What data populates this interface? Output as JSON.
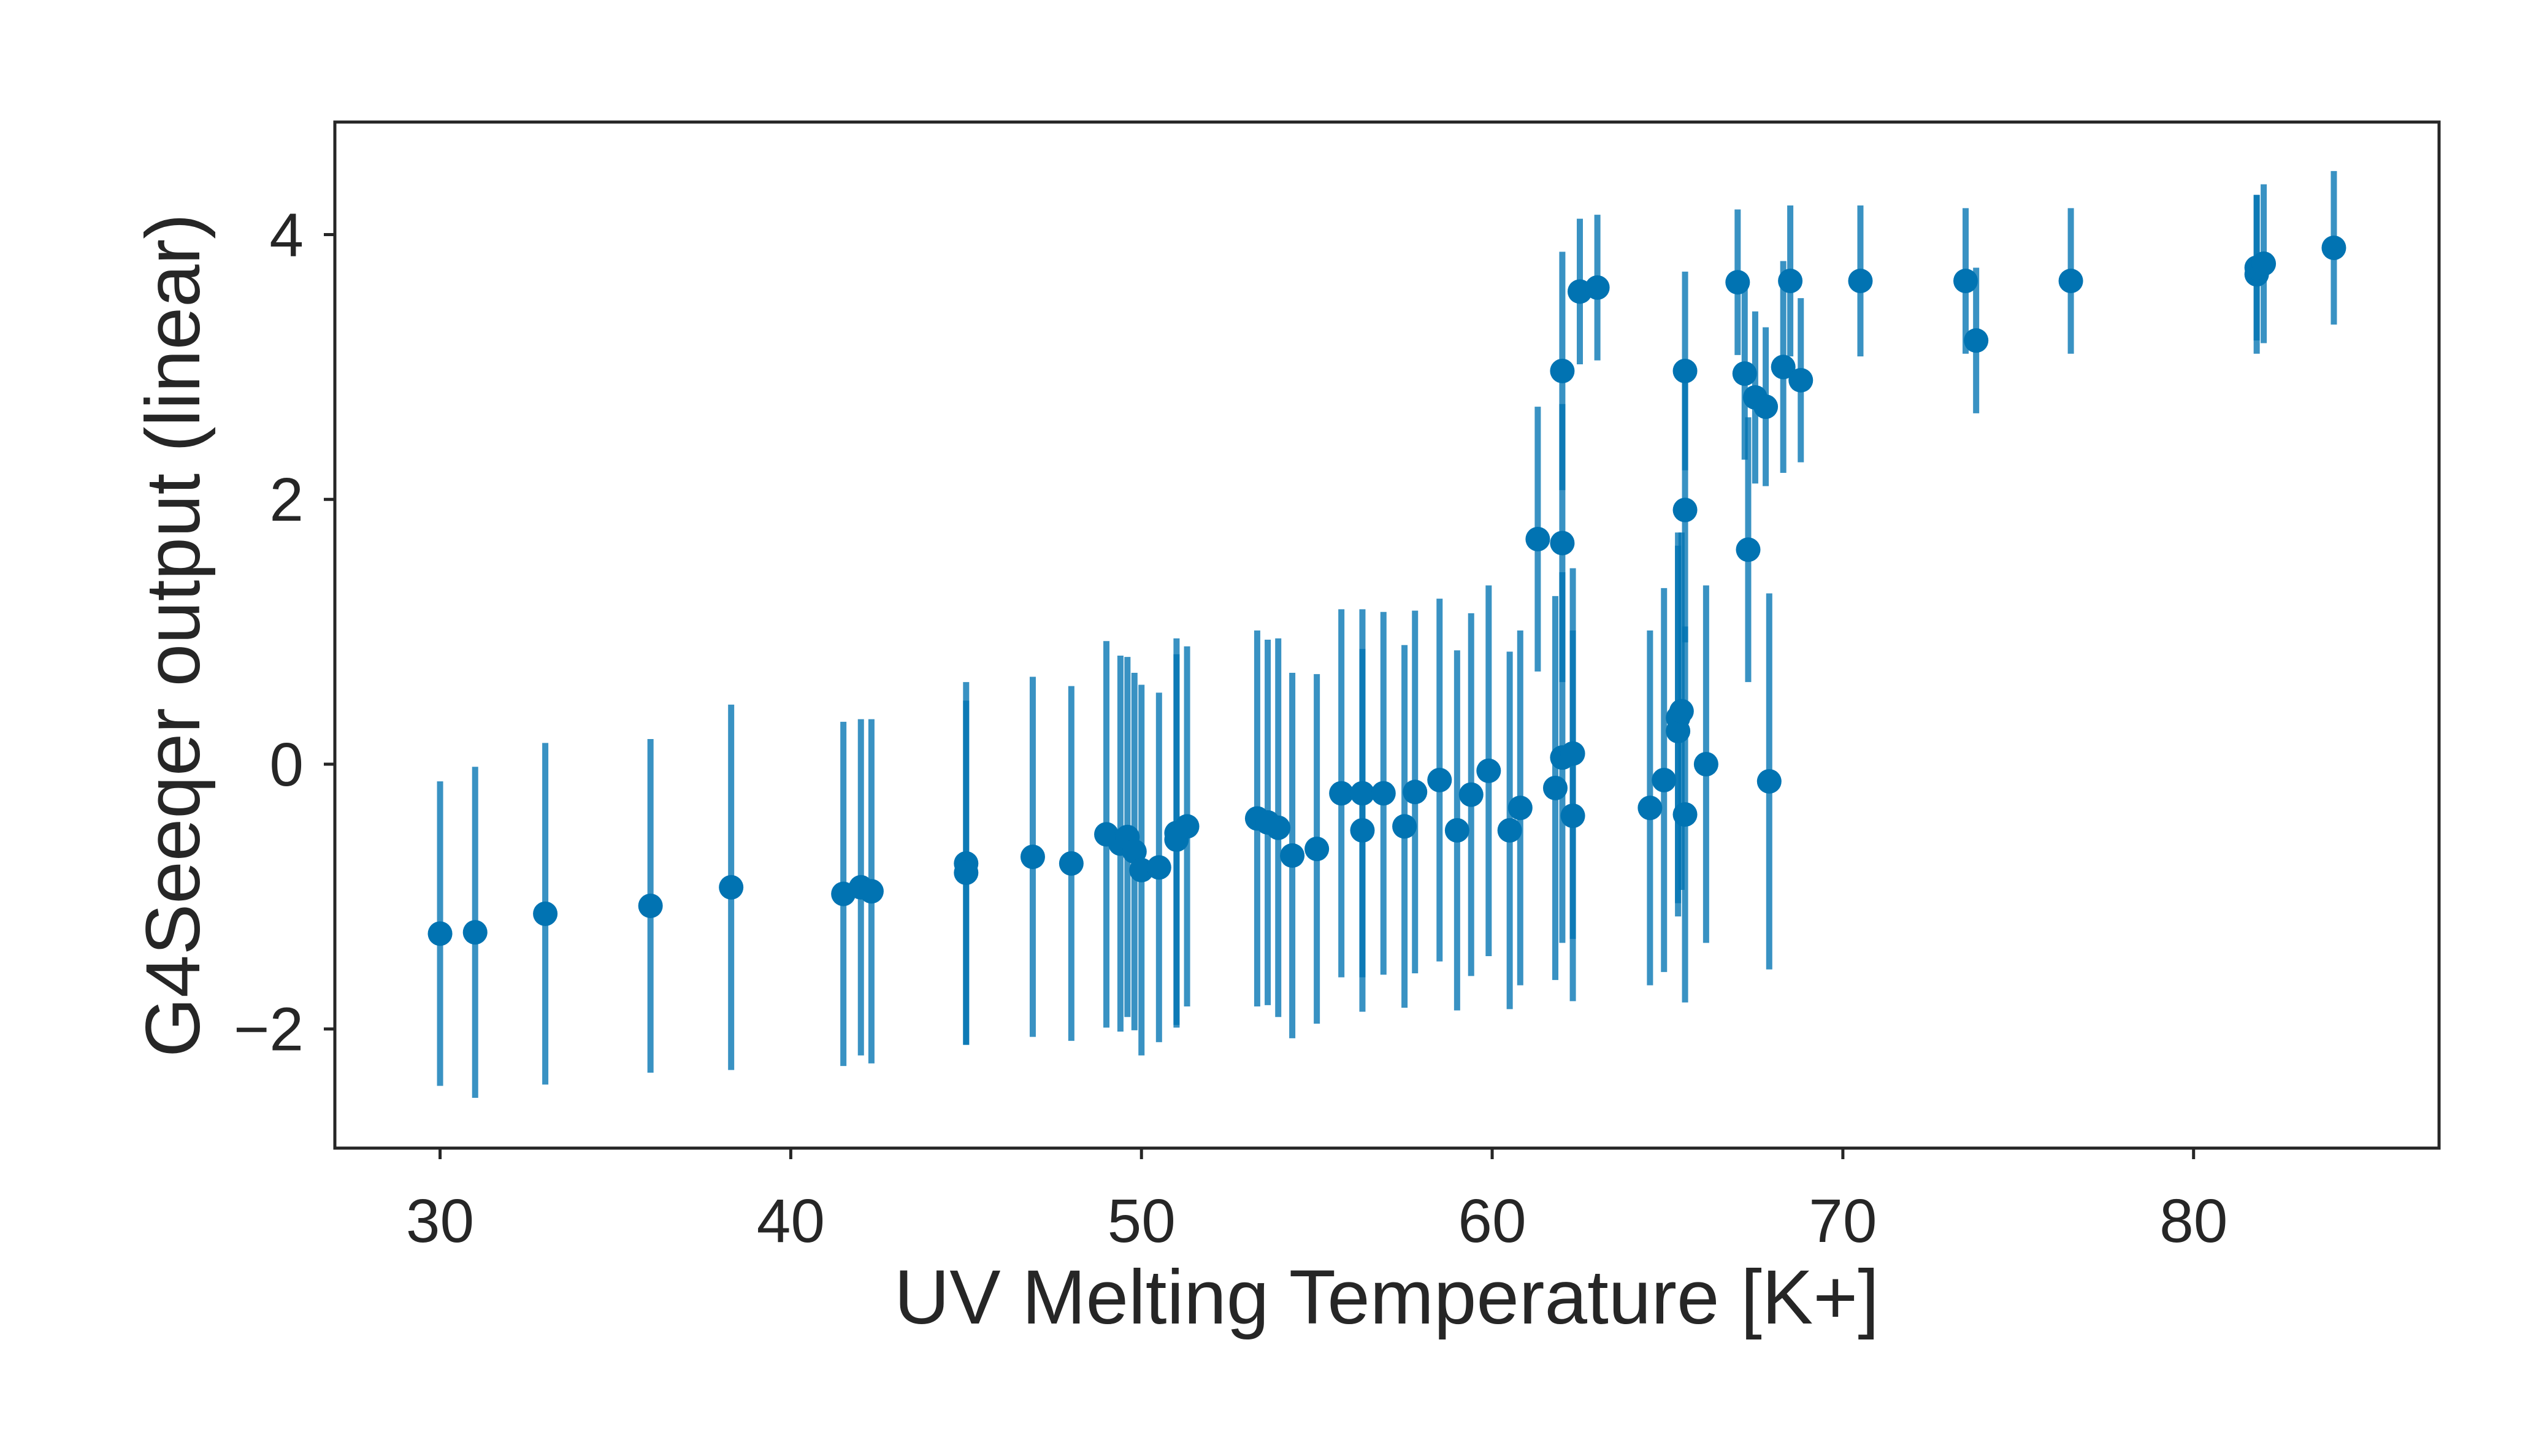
{
  "chart_data": {
    "type": "scatter",
    "title": "",
    "xlabel": "UV Melting Temperature [K+]",
    "ylabel": "G4Seeqer output (linear)",
    "xlim": [
      27,
      87
    ],
    "ylim": [
      -2.9,
      4.85
    ],
    "xticks": [
      30,
      40,
      50,
      60,
      70,
      80
    ],
    "yticks": [
      -2,
      0,
      2,
      4
    ],
    "x_tick_labels": [
      "30",
      "40",
      "50",
      "60",
      "70",
      "80"
    ],
    "y_tick_labels": [
      "−2",
      "0",
      "2",
      "4"
    ],
    "grid": false,
    "legend": "none",
    "marker_color": "#0173b2",
    "errorbar_color": "#0173b2",
    "points": [
      {
        "x": 30.0,
        "y": -1.28,
        "err": 1.15
      },
      {
        "x": 31.0,
        "y": -1.27,
        "err": 1.25
      },
      {
        "x": 33.0,
        "y": -1.13,
        "err": 1.29
      },
      {
        "x": 36.0,
        "y": -1.07,
        "err": 1.26
      },
      {
        "x": 38.3,
        "y": -0.93,
        "err": 1.38
      },
      {
        "x": 41.5,
        "y": -0.98,
        "err": 1.3
      },
      {
        "x": 42.0,
        "y": -0.93,
        "err": 1.27
      },
      {
        "x": 42.3,
        "y": -0.96,
        "err": 1.3
      },
      {
        "x": 45.0,
        "y": -0.75,
        "err": 1.37
      },
      {
        "x": 45.0,
        "y": -0.82,
        "err": 1.3
      },
      {
        "x": 46.9,
        "y": -0.7,
        "err": 1.36
      },
      {
        "x": 48.0,
        "y": -0.75,
        "err": 1.34
      },
      {
        "x": 49.0,
        "y": -0.53,
        "err": 1.46
      },
      {
        "x": 49.4,
        "y": -0.6,
        "err": 1.42
      },
      {
        "x": 49.6,
        "y": -0.55,
        "err": 1.36
      },
      {
        "x": 49.8,
        "y": -0.66,
        "err": 1.35
      },
      {
        "x": 50.0,
        "y": -0.8,
        "err": 1.4
      },
      {
        "x": 50.5,
        "y": -0.78,
        "err": 1.32
      },
      {
        "x": 51.0,
        "y": -0.52,
        "err": 1.47
      },
      {
        "x": 51.0,
        "y": -0.57,
        "err": 1.4
      },
      {
        "x": 51.3,
        "y": -0.47,
        "err": 1.36
      },
      {
        "x": 53.3,
        "y": -0.41,
        "err": 1.42
      },
      {
        "x": 53.6,
        "y": -0.44,
        "err": 1.38
      },
      {
        "x": 53.9,
        "y": -0.48,
        "err": 1.43
      },
      {
        "x": 54.3,
        "y": -0.69,
        "err": 1.38
      },
      {
        "x": 55.0,
        "y": -0.64,
        "err": 1.32
      },
      {
        "x": 55.7,
        "y": -0.22,
        "err": 1.39
      },
      {
        "x": 56.3,
        "y": -0.5,
        "err": 1.37
      },
      {
        "x": 56.3,
        "y": -0.22,
        "err": 1.39
      },
      {
        "x": 56.9,
        "y": -0.22,
        "err": 1.37
      },
      {
        "x": 57.5,
        "y": -0.47,
        "err": 1.37
      },
      {
        "x": 57.8,
        "y": -0.21,
        "err": 1.37
      },
      {
        "x": 58.5,
        "y": -0.12,
        "err": 1.37
      },
      {
        "x": 59.0,
        "y": -0.5,
        "err": 1.36
      },
      {
        "x": 59.4,
        "y": -0.23,
        "err": 1.37
      },
      {
        "x": 59.9,
        "y": -0.05,
        "err": 1.4
      },
      {
        "x": 60.5,
        "y": -0.5,
        "err": 1.35
      },
      {
        "x": 60.8,
        "y": -0.33,
        "err": 1.34
      },
      {
        "x": 61.3,
        "y": 1.7,
        "err": 1.0
      },
      {
        "x": 61.8,
        "y": -0.18,
        "err": 1.45
      },
      {
        "x": 62.0,
        "y": 1.67,
        "err": 1.05
      },
      {
        "x": 62.0,
        "y": 0.05,
        "err": 1.4
      },
      {
        "x": 62.0,
        "y": 2.97,
        "err": 0.9
      },
      {
        "x": 62.3,
        "y": 0.08,
        "err": 1.4
      },
      {
        "x": 62.3,
        "y": -0.39,
        "err": 1.4
      },
      {
        "x": 62.5,
        "y": 3.57,
        "err": 0.55
      },
      {
        "x": 63.0,
        "y": 3.6,
        "err": 0.55
      },
      {
        "x": 64.5,
        "y": -0.33,
        "err": 1.34
      },
      {
        "x": 64.9,
        "y": -0.12,
        "err": 1.45
      },
      {
        "x": 65.3,
        "y": 0.25,
        "err": 1.4
      },
      {
        "x": 65.3,
        "y": 0.35,
        "err": 1.4
      },
      {
        "x": 65.4,
        "y": 0.4,
        "err": 1.35
      },
      {
        "x": 65.5,
        "y": -0.38,
        "err": 1.42
      },
      {
        "x": 65.5,
        "y": 1.92,
        "err": 1.0
      },
      {
        "x": 65.5,
        "y": 2.97,
        "err": 0.75
      },
      {
        "x": 66.1,
        "y": 0.0,
        "err": 1.35
      },
      {
        "x": 67.0,
        "y": 3.64,
        "err": 0.55
      },
      {
        "x": 67.2,
        "y": 2.95,
        "err": 0.65
      },
      {
        "x": 67.3,
        "y": 1.62,
        "err": 1.0
      },
      {
        "x": 67.5,
        "y": 2.77,
        "err": 0.65
      },
      {
        "x": 67.8,
        "y": 2.7,
        "err": 0.6
      },
      {
        "x": 67.9,
        "y": -0.13,
        "err": 1.42
      },
      {
        "x": 68.3,
        "y": 3.0,
        "err": 0.8
      },
      {
        "x": 68.5,
        "y": 3.65,
        "err": 0.57
      },
      {
        "x": 68.8,
        "y": 2.9,
        "err": 0.62
      },
      {
        "x": 70.5,
        "y": 3.65,
        "err": 0.57
      },
      {
        "x": 73.5,
        "y": 3.65,
        "err": 0.55
      },
      {
        "x": 73.8,
        "y": 3.2,
        "err": 0.55
      },
      {
        "x": 76.5,
        "y": 3.65,
        "err": 0.55
      },
      {
        "x": 81.8,
        "y": 3.7,
        "err": 0.6
      },
      {
        "x": 81.8,
        "y": 3.75,
        "err": 0.55
      },
      {
        "x": 82.0,
        "y": 3.78,
        "err": 0.6
      },
      {
        "x": 84.0,
        "y": 3.9,
        "err": 0.58
      }
    ]
  }
}
